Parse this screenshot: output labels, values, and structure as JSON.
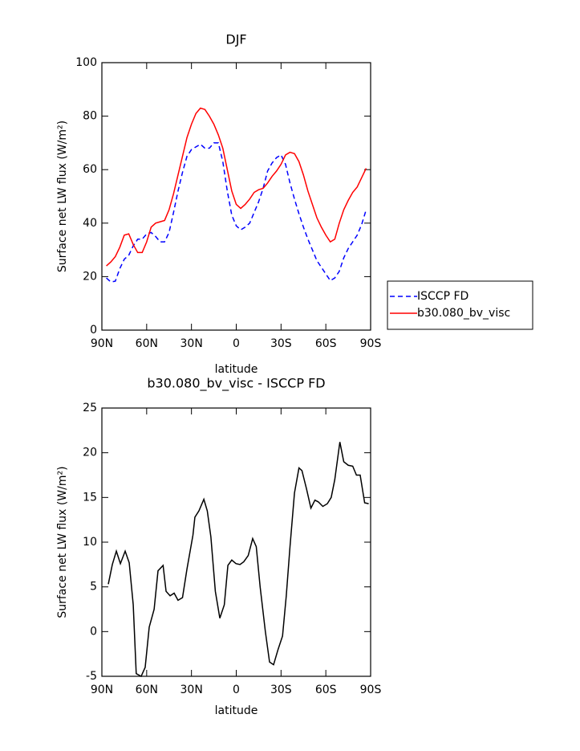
{
  "chart_data": [
    {
      "type": "line",
      "title": "DJF",
      "xlabel": "latitude",
      "ylabel": "Surface net LW flux (W/m²)",
      "xlim": [
        90,
        -90
      ],
      "xticks": [
        {
          "value": 90,
          "label": "90N"
        },
        {
          "value": 60,
          "label": "60N"
        },
        {
          "value": 30,
          "label": "30N"
        },
        0,
        {
          "value": -30,
          "label": "30S"
        },
        {
          "value": -60,
          "label": "60S"
        },
        {
          "value": -90,
          "label": "90S"
        }
      ],
      "ylim": [
        0,
        100
      ],
      "yticks": [
        0,
        20,
        40,
        60,
        80,
        100
      ],
      "legend": "right",
      "x": [
        87,
        84,
        81,
        78,
        75,
        72,
        69,
        66,
        63,
        60,
        57,
        54,
        51,
        48,
        45,
        42,
        39,
        36,
        33,
        30,
        27,
        24,
        21,
        18,
        15,
        12,
        9,
        6,
        3,
        0,
        -3,
        -6,
        -9,
        -12,
        -15,
        -18,
        -21,
        -24,
        -27,
        -30,
        -33,
        -36,
        -39,
        -42,
        -45,
        -48,
        -51,
        -54,
        -57,
        -60,
        -63,
        -66,
        -69,
        -72,
        -75,
        -78,
        -81,
        -84,
        -87
      ],
      "series": [
        {
          "name": "ISCCP FD",
          "color": "#0000ff",
          "dash": true,
          "values": [
            19.5,
            18,
            18.3,
            23,
            26.5,
            28,
            31.5,
            34,
            34,
            36,
            36.5,
            35,
            33,
            33,
            36.5,
            44,
            52,
            59,
            65,
            67.5,
            68.5,
            69.5,
            68,
            68,
            70,
            70,
            63,
            52,
            43,
            39,
            37.5,
            38.5,
            40,
            44,
            48,
            53,
            59.5,
            62.5,
            64.5,
            65.5,
            62,
            55,
            49,
            43.5,
            38.5,
            34,
            30,
            26,
            23.5,
            21,
            18.5,
            19.5,
            22,
            27,
            30.5,
            33,
            35.5,
            39.5,
            45
          ]
        },
        {
          "name": "b30.080_bv_visc",
          "color": "#ff0000",
          "dash": false,
          "values": [
            24,
            25.5,
            27.5,
            31,
            35.5,
            36,
            32,
            29,
            29,
            33,
            38.5,
            40,
            40.5,
            41,
            45,
            51,
            58,
            65,
            72,
            77,
            81,
            83,
            82.5,
            80,
            77,
            73,
            68,
            60,
            52,
            47,
            45.5,
            47,
            49,
            51.5,
            52.5,
            53,
            55,
            57.5,
            59.5,
            62,
            65.5,
            66.5,
            66,
            63,
            58,
            52,
            47,
            42,
            38.5,
            35.5,
            33,
            34,
            40,
            45,
            48.5,
            51.5,
            53.5,
            57,
            60.5
          ]
        }
      ]
    },
    {
      "type": "line",
      "title": "b30.080_bv_visc - ISCCP FD",
      "xlabel": "latitude",
      "ylabel": "Surface net LW flux (W/m²)",
      "xlim": [
        90,
        -90
      ],
      "xticks": [
        {
          "value": 90,
          "label": "90N"
        },
        {
          "value": 60,
          "label": "60N"
        },
        {
          "value": 30,
          "label": "30N"
        },
        0,
        {
          "value": -30,
          "label": "30S"
        },
        {
          "value": -60,
          "label": "60S"
        },
        {
          "value": -90,
          "label": "90S"
        }
      ],
      "ylim": [
        -5,
        25
      ],
      "yticks": [
        -5,
        0,
        5,
        10,
        15,
        20,
        25
      ],
      "x": [
        85.7,
        83,
        80.3,
        77.6,
        74.4,
        71.7,
        69,
        67,
        63.7,
        61,
        58.3,
        55,
        52.4,
        49,
        47,
        44.3,
        41.6,
        39,
        36,
        33,
        29,
        27.7,
        25,
        21.7,
        19.4,
        17,
        14,
        11,
        8,
        5.6,
        3,
        0.2,
        -2.5,
        -5,
        -8,
        -11,
        -13.4,
        -16,
        -19.5,
        -22.3,
        -25,
        -28,
        -31,
        -33.5,
        -36,
        -39,
        -42,
        -44,
        -47,
        -50,
        -52.7,
        -55,
        -58,
        -61,
        -63.6,
        -66,
        -69.4,
        -72,
        -75,
        -78,
        -80.5,
        -83,
        -86,
        -88.7
      ],
      "series": [
        {
          "color": "#000000",
          "dash": false,
          "values": [
            5.3,
            7.5,
            9,
            7.6,
            9,
            7.7,
            3,
            -4.7,
            -5,
            -4,
            0.5,
            2.5,
            6.8,
            7.4,
            4.5,
            4,
            4.3,
            3.5,
            3.8,
            7,
            10.8,
            12.8,
            13.5,
            14.8,
            13.5,
            10.6,
            4.5,
            1.5,
            3,
            7.4,
            8,
            7.6,
            7.5,
            7.8,
            8.5,
            10.4,
            9.5,
            5,
            0,
            -3.4,
            -3.7,
            -2,
            -0.5,
            4,
            9.5,
            15.5,
            18.3,
            18,
            16,
            13.8,
            14.7,
            14.5,
            14,
            14.3,
            15,
            17,
            21.2,
            19,
            18.6,
            18.5,
            17.5,
            17.5,
            14.4,
            14.3
          ]
        }
      ]
    }
  ]
}
